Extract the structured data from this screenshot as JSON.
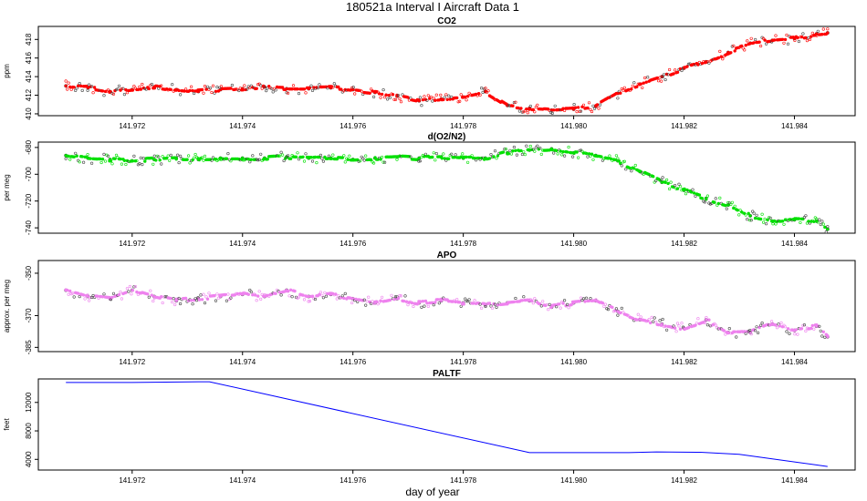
{
  "figure": {
    "title": "180521a   Interval I Aircraft Data 1",
    "xlabel": "day of year"
  },
  "chart_data": [
    {
      "type": "scatter",
      "title": "CO2",
      "ylabel": "ppm",
      "color": "#ff0000",
      "xlim": [
        141.9703,
        141.9851
      ],
      "ylim": [
        409.8,
        419.4
      ],
      "x_ticks": [
        "141.972",
        "141.974",
        "141.976",
        "141.978",
        "141.980",
        "141.982",
        "141.984"
      ],
      "y_ticks": [
        "410",
        "412",
        "414",
        "416",
        "418"
      ],
      "series": [
        {
          "x": [
            141.9708,
            141.9712,
            141.9716,
            141.972,
            141.9724,
            141.9728,
            141.9732,
            141.9736,
            141.974,
            141.9744,
            141.9748,
            141.9752,
            141.9756,
            141.976,
            141.9764,
            141.9768,
            141.9772,
            141.9776,
            141.978,
            141.9784,
            141.9788,
            141.9792,
            141.9796,
            141.98,
            141.9804,
            141.9808,
            141.9812,
            141.9816,
            141.982,
            141.9824,
            141.9828,
            141.9832,
            141.9836,
            141.984,
            141.9844,
            141.9846
          ],
          "values": [
            413.0,
            412.8,
            412.4,
            412.6,
            412.9,
            412.6,
            412.4,
            412.6,
            412.7,
            412.9,
            412.7,
            412.7,
            412.8,
            412.6,
            412.3,
            411.9,
            411.4,
            411.6,
            411.8,
            412.4,
            410.9,
            410.6,
            410.4,
            410.5,
            410.8,
            412.2,
            413.2,
            414.0,
            414.9,
            415.6,
            416.6,
            417.6,
            417.9,
            418.1,
            418.6,
            418.7
          ]
        }
      ]
    },
    {
      "type": "scatter",
      "title": "d(O2/N2)",
      "ylabel": "per meg",
      "color": "#00e000",
      "xlim": [
        141.9703,
        141.9851
      ],
      "ylim": [
        -744,
        -676
      ],
      "x_ticks": [
        "141.972",
        "141.974",
        "141.976",
        "141.978",
        "141.980",
        "141.982",
        "141.984"
      ],
      "y_ticks": [
        "-680",
        "-700",
        "-720",
        "-740"
      ],
      "series": [
        {
          "x": [
            141.9708,
            141.9712,
            141.9716,
            141.972,
            141.9724,
            141.9728,
            141.9732,
            141.9736,
            141.974,
            141.9744,
            141.9748,
            141.9752,
            141.9756,
            141.976,
            141.9764,
            141.9768,
            141.9772,
            141.9776,
            141.978,
            141.9784,
            141.9788,
            141.9792,
            141.9796,
            141.98,
            141.9804,
            141.9808,
            141.9812,
            141.9816,
            141.982,
            141.9824,
            141.9828,
            141.9832,
            141.9836,
            141.984,
            141.9844,
            141.9846
          ],
          "values": [
            -686,
            -688,
            -689,
            -690,
            -689,
            -688,
            -689,
            -688,
            -688,
            -688,
            -687,
            -688,
            -688,
            -689,
            -688,
            -687,
            -688,
            -687,
            -688,
            -688,
            -684,
            -682,
            -681,
            -684,
            -686,
            -690,
            -698,
            -706,
            -712,
            -718,
            -723,
            -731,
            -735,
            -734,
            -735,
            -741
          ]
        }
      ]
    },
    {
      "type": "scatter",
      "title": "APO",
      "ylabel": "approx. per meg",
      "color": "#ee82ee",
      "xlim": [
        141.9703,
        141.9851
      ],
      "ylim": [
        -387,
        -344
      ],
      "x_ticks": [
        "141.972",
        "141.974",
        "141.976",
        "141.978",
        "141.980",
        "141.982",
        "141.984"
      ],
      "y_ticks": [
        "-350",
        "-370",
        "-385"
      ],
      "series": [
        {
          "x": [
            141.9708,
            141.9712,
            141.9716,
            141.972,
            141.9724,
            141.9728,
            141.9732,
            141.9736,
            141.974,
            141.9744,
            141.9748,
            141.9752,
            141.9756,
            141.976,
            141.9764,
            141.9768,
            141.9772,
            141.9776,
            141.978,
            141.9784,
            141.9788,
            141.9792,
            141.9796,
            141.98,
            141.9804,
            141.9808,
            141.9812,
            141.9816,
            141.982,
            141.9824,
            141.9828,
            141.9832,
            141.9836,
            141.984,
            141.9844,
            141.9846
          ],
          "values": [
            -358,
            -361,
            -362,
            -358,
            -361,
            -363,
            -362,
            -361,
            -360,
            -361,
            -358,
            -361,
            -360,
            -362,
            -364,
            -362,
            -364,
            -363,
            -364,
            -365,
            -364,
            -363,
            -366,
            -364,
            -363,
            -368,
            -372,
            -374,
            -376,
            -372,
            -378,
            -378,
            -374,
            -377,
            -375,
            -380
          ]
        }
      ]
    },
    {
      "type": "line",
      "title": "PALTF",
      "ylabel": "feet",
      "color": "#0000ff",
      "xlim": [
        141.9703,
        141.9851
      ],
      "ylim": [
        2500,
        15300
      ],
      "x_ticks": [
        "141.972",
        "141.974",
        "141.976",
        "141.978",
        "141.980",
        "141.982",
        "141.984"
      ],
      "y_ticks": [
        "4000",
        "8000",
        "12000"
      ],
      "series": [
        {
          "x": [
            141.9708,
            141.972,
            141.9732,
            141.9734,
            141.9792,
            141.98,
            141.981,
            141.9815,
            141.9823,
            141.983,
            141.9846
          ],
          "values": [
            14800,
            14800,
            14900,
            14900,
            4950,
            4950,
            4950,
            5050,
            5000,
            4700,
            3000
          ]
        }
      ]
    }
  ]
}
